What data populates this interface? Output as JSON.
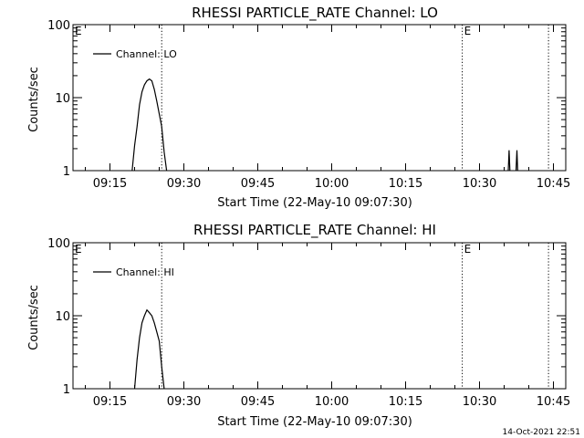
{
  "chart_data": [
    {
      "type": "line",
      "title": "RHESSI PARTICLE_RATE Channel: LO",
      "xlabel": "Start Time (22-May-10 09:07:30)",
      "ylabel": "Counts/sec",
      "y_scale": "log",
      "ylim": [
        1,
        100
      ],
      "xlim": [
        "09:07:30",
        "10:47:30"
      ],
      "x_ticks": [
        "09:15",
        "09:30",
        "09:45",
        "10:00",
        "10:15",
        "10:30",
        "10:45"
      ],
      "y_ticks": [
        "1",
        "10",
        "100"
      ],
      "legend": {
        "placement": "top-left",
        "entries": [
          "Channel: LO"
        ]
      },
      "event_lines": [
        {
          "time": "09:25:30",
          "label": ""
        },
        {
          "time": "10:26:30",
          "label": "E"
        },
        {
          "time": "10:44:00",
          "label": ""
        }
      ],
      "left_marker": "E",
      "series": [
        {
          "name": "Channel: LO",
          "segments": [
            {
              "x": [
                "09:19:30",
                "09:20:00",
                "09:20:30",
                "09:21:00",
                "09:21:30",
                "09:22:00",
                "09:22:30",
                "09:23:00",
                "09:23:30",
                "09:24:00",
                "09:24:30",
                "09:25:00",
                "09:25:30",
                "09:26:00",
                "09:26:30"
              ],
              "y": [
                1,
                2.2,
                4,
                8,
                12,
                15,
                17,
                18,
                17,
                13,
                9,
                6,
                4,
                1.8,
                1
              ]
            },
            {
              "x": [
                "10:35:50",
                "10:36:00",
                "10:36:10"
              ],
              "y": [
                1,
                1.9,
                1
              ]
            },
            {
              "x": [
                "10:37:25",
                "10:37:35",
                "10:37:45"
              ],
              "y": [
                1,
                1.9,
                1
              ]
            }
          ]
        }
      ]
    },
    {
      "type": "line",
      "title": "RHESSI PARTICLE_RATE Channel: HI",
      "xlabel": "Start Time (22-May-10 09:07:30)",
      "ylabel": "Counts/sec",
      "y_scale": "log",
      "ylim": [
        1,
        100
      ],
      "xlim": [
        "09:07:30",
        "10:47:30"
      ],
      "x_ticks": [
        "09:15",
        "09:30",
        "09:45",
        "10:00",
        "10:15",
        "10:30",
        "10:45"
      ],
      "y_ticks": [
        "1",
        "10",
        "100"
      ],
      "legend": {
        "placement": "top-left",
        "entries": [
          "Channel: HI"
        ]
      },
      "event_lines": [
        {
          "time": "09:25:30",
          "label": ""
        },
        {
          "time": "10:26:30",
          "label": "E"
        },
        {
          "time": "10:44:00",
          "label": ""
        }
      ],
      "left_marker": "E",
      "series": [
        {
          "name": "Channel: HI",
          "segments": [
            {
              "x": [
                "09:20:00",
                "09:20:30",
                "09:21:00",
                "09:21:30",
                "09:22:00",
                "09:22:30",
                "09:23:00",
                "09:23:30",
                "09:24:00",
                "09:24:30",
                "09:25:00",
                "09:25:30",
                "09:26:00"
              ],
              "y": [
                1,
                2.5,
                5,
                8,
                10,
                12,
                11,
                10,
                8,
                6,
                4.5,
                2,
                1
              ]
            }
          ]
        }
      ]
    }
  ],
  "footer": {
    "timestamp": "14-Oct-2021 22:51"
  }
}
